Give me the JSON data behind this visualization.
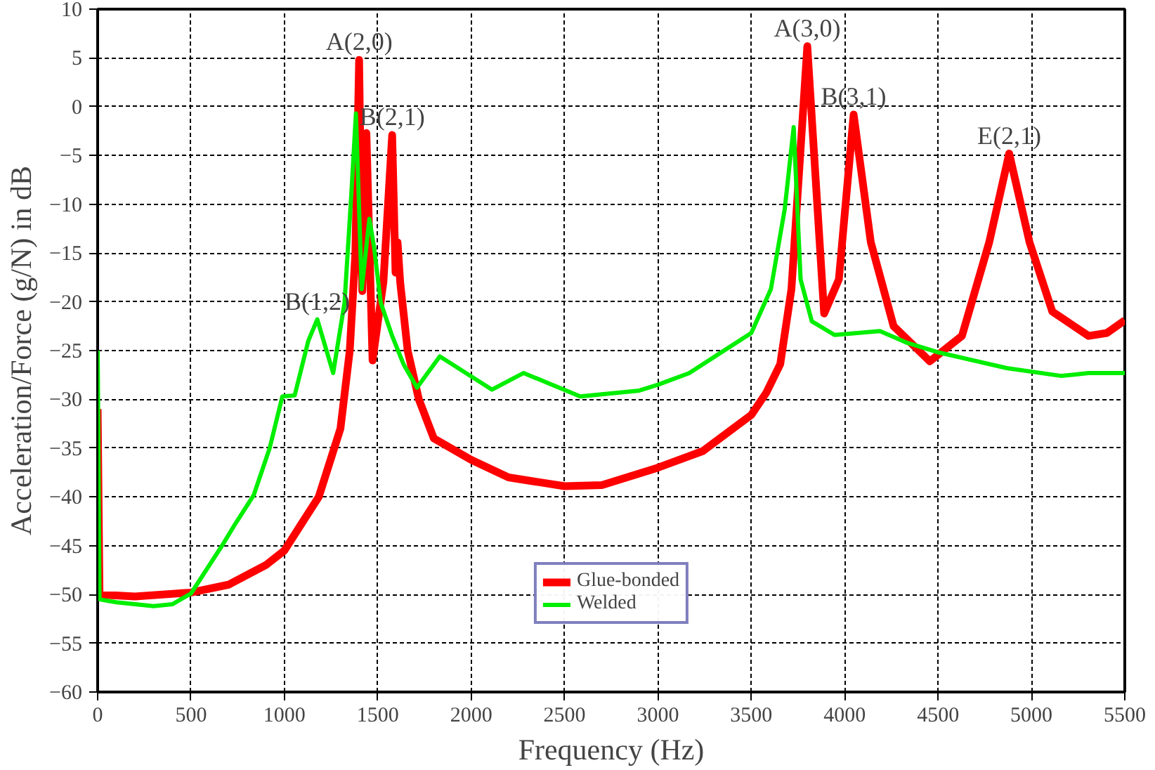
{
  "chart_data": {
    "type": "line",
    "xlabel": "Frequency (Hz)",
    "ylabel": "Acceleration/Force (g/N) in dB",
    "xlim": [
      0,
      5500
    ],
    "ylim": [
      -60,
      10
    ],
    "xticks": [
      0,
      500,
      1000,
      1500,
      2000,
      2500,
      3000,
      3500,
      4000,
      4500,
      5000,
      5500
    ],
    "yticks": [
      10,
      5,
      0,
      -5,
      -10,
      -15,
      -20,
      -25,
      -30,
      -35,
      -40,
      -45,
      -50,
      -55,
      -60
    ],
    "grid": true,
    "legend": "bottom",
    "line_style": "solid",
    "marker": "none",
    "series": [
      {
        "name": "Glue-bonded",
        "color": "#ff0000",
        "x": [
          0,
          10,
          200,
          500,
          700,
          900,
          1000,
          1100,
          1184,
          1300,
          1350,
          1380,
          1400,
          1417,
          1439,
          1472,
          1530,
          1577,
          1595,
          1606,
          1620,
          1660,
          1720,
          1800,
          2000,
          2200,
          2500,
          2700,
          3000,
          3241,
          3500,
          3581,
          3655,
          3715,
          3800,
          3890,
          3969,
          4048,
          4140,
          4262,
          4456,
          4628,
          4774,
          4881,
          4990,
          5112,
          5306,
          5404,
          5500
        ],
        "values": [
          -31,
          -50,
          -50.2,
          -49.8,
          -49,
          -47,
          -45.5,
          -42.5,
          -40,
          -33,
          -25,
          -15,
          4.8,
          -18.9,
          -2.7,
          -26,
          -18,
          -2.9,
          -17,
          -13.9,
          -18,
          -25,
          -30,
          -34,
          -36.2,
          -38,
          -38.9,
          -38.8,
          -37,
          -35.3,
          -31.6,
          -29.3,
          -26.4,
          -18.7,
          6.2,
          -21.2,
          -17.7,
          -0.8,
          -13.9,
          -22.5,
          -26.1,
          -23.5,
          -13.9,
          -4.8,
          -13.9,
          -21,
          -23.5,
          -23.2,
          -21.9
        ]
      },
      {
        "name": "Welded",
        "color": "#00ee00",
        "x": [
          0,
          10,
          100,
          300,
          400,
          500,
          666,
          739,
          836,
          921,
          989,
          1055,
          1128,
          1176,
          1261,
          1322,
          1358,
          1383,
          1414,
          1455,
          1480,
          1516,
          1577,
          1638,
          1710,
          1832,
          2111,
          2281,
          2584,
          2900,
          3000,
          3168,
          3500,
          3605,
          3679,
          3727,
          3764,
          3824,
          3946,
          4189,
          4334,
          4505,
          4869,
          5161,
          5306,
          5500
        ],
        "values": [
          -25,
          -50.5,
          -50.8,
          -51.2,
          -51,
          -49.9,
          -45,
          -42.7,
          -39.8,
          -35,
          -29.7,
          -29.6,
          -24,
          -21.8,
          -27.3,
          -20.1,
          -9.1,
          -0.7,
          -18.7,
          -11.5,
          -14.4,
          -20.1,
          -23.5,
          -26.4,
          -28.8,
          -25.6,
          -29,
          -27.3,
          -29.7,
          -29.1,
          -28.5,
          -27.3,
          -23.2,
          -18.7,
          -10.5,
          -2.1,
          -17.7,
          -22,
          -23.4,
          -23,
          -24.2,
          -25.2,
          -26.8,
          -27.6,
          -27.3,
          -27.3
        ]
      }
    ],
    "annotations": [
      {
        "text": "A(2,0)",
        "x": 1400,
        "y": 4.8
      },
      {
        "text": "B(2,1)",
        "x": 1577,
        "y": -2.9
      },
      {
        "text": "B(1,2)",
        "x": 1176,
        "y": -21.8
      },
      {
        "text": "A(3,0)",
        "x": 3800,
        "y": 6.2
      },
      {
        "text": "B(3,1)",
        "x": 4048,
        "y": -0.8
      },
      {
        "text": "E(2,1)",
        "x": 4881,
        "y": -4.8
      }
    ]
  }
}
